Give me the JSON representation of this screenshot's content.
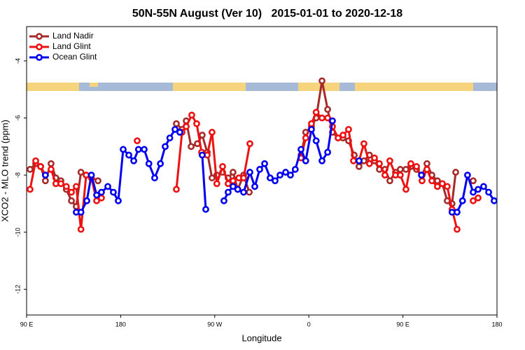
{
  "chart_data": {
    "type": "line",
    "title": "50N-55N August (Ver 10)   2015-01-01 to 2020-12-18",
    "x_label": "Longitude",
    "y_label": "XCO2 - MLO trend (ppm)",
    "xlim": [
      90,
      540
    ],
    "ylim": [
      -12.9,
      -2.8
    ],
    "xticks": [
      {
        "value": 90,
        "label": "90 E"
      },
      180,
      {
        "value": 270,
        "label": "90 W"
      },
      {
        "value": 360,
        "label": "0"
      },
      {
        "value": 450,
        "label": "90 E"
      },
      {
        "value": 540,
        "label": "180"
      }
    ],
    "yticks": [
      -12,
      -10,
      -8,
      -6,
      -4
    ],
    "legend": "upper left",
    "series": [
      {
        "name": "Land Nadir",
        "color": "#a52a2a",
        "x": [
          93.3,
          98.7,
          103.4,
          108,
          113.4,
          118,
          122.8,
          128,
          132.9,
          137.5,
          142,
          147,
          158.3,
          200,
          233.3,
          238.7,
          242.7,
          247.4,
          253.4,
          258,
          262.8,
          267.4,
          272,
          277.5,
          282.8,
          287.5,
          292,
          297.6,
          303,
          330,
          352.5,
          357,
          362.5,
          367,
          372.6,
          378,
          382.6,
          388,
          392.7,
          398,
          403.4,
          408,
          412.7,
          418,
          422.8,
          427.5,
          432.8,
          437.5,
          442.9,
          447.5,
          452.9,
          457.6,
          463,
          468.3,
          473,
          477.7,
          483,
          487.7,
          492.4,
          497,
          500.5,
          510,
          517.2
        ],
        "values": [
          -7.8,
          -7.6,
          -7.7,
          -8.2,
          -7.6,
          -8.1,
          -8.2,
          -8.5,
          -8.9,
          -9.1,
          -7.9,
          -8.0,
          -8.2,
          null,
          -6.2,
          -6.4,
          -6.1,
          -7.0,
          -6.9,
          -6.6,
          -7.2,
          -8.1,
          -8.0,
          -7.9,
          -8.1,
          -7.9,
          -8.5,
          -8.0,
          -8.6,
          null,
          -7.3,
          -6.5,
          -6.3,
          -6.0,
          -4.7,
          -5.7,
          -6.5,
          -6.7,
          -6.7,
          -6.8,
          -7.3,
          -7.7,
          -7.5,
          -7.3,
          -7.5,
          -7.8,
          -7.8,
          -8.2,
          -7.9,
          -7.8,
          -7.8,
          -7.7,
          -7.8,
          -8.0,
          -7.6,
          -8.0,
          -8.2,
          -8.3,
          -8.9,
          -9.0,
          -7.9,
          null,
          -8.2
        ]
      },
      {
        "name": "Land Glint",
        "color": "#ee1111",
        "x": [
          93.3,
          98.7,
          103.4,
          108,
          113.4,
          118,
          122.8,
          128,
          132.9,
          137.5,
          142,
          147,
          152,
          157,
          161.6,
          180,
          195.8,
          215,
          233.3,
          238.7,
          242.7,
          248,
          252.7,
          257.4,
          262.8,
          267.4,
          272,
          277.5,
          282.8,
          287.5,
          293,
          297.6,
          303.6,
          330,
          352.5,
          357,
          362.5,
          367,
          372.6,
          378,
          382.6,
          388,
          392.7,
          398,
          402.7,
          408,
          412.7,
          418,
          422.8,
          427.5,
          432.8,
          437.5,
          442.9,
          447.5,
          452.9,
          457.6,
          463,
          468.3,
          473,
          477.7,
          483,
          487.7,
          492.4,
          497,
          501.8,
          510,
          517.2,
          521.9
        ],
        "values": [
          -8.5,
          -7.5,
          -7.7,
          -8.0,
          -7.8,
          -8.3,
          -8.3,
          -8.4,
          -8.6,
          -8.4,
          -9.9,
          -8.0,
          -8.1,
          -8.9,
          -8.8,
          null,
          -6.8,
          null,
          -8.5,
          -6.5,
          -6.3,
          -5.9,
          -6.2,
          -7.2,
          -7.3,
          -6.5,
          -8.3,
          -7.7,
          -8.3,
          -8.2,
          -8.1,
          -8.1,
          -6.9,
          null,
          -7.4,
          -6.7,
          -6.2,
          -5.8,
          -6.0,
          -6.0,
          -6.3,
          -6.7,
          -6.6,
          -6.4,
          -7.5,
          -7.5,
          -6.9,
          -7.6,
          -7.4,
          -7.6,
          -8.0,
          -7.5,
          -8.0,
          -8.0,
          -8.5,
          -7.6,
          -7.7,
          -8.2,
          -7.8,
          -8.2,
          -8.4,
          -8.3,
          -8.4,
          -9.2,
          -9.9,
          null,
          -8.9,
          -8.8
        ]
      },
      {
        "name": "Ocean Glint",
        "color": "#0000ee",
        "x": [
          108,
          120,
          137.5,
          142,
          147.6,
          152,
          157,
          161.6,
          167.7,
          173,
          177.7,
          182.4,
          187.8,
          192.5,
          197,
          202.5,
          207,
          212.5,
          218,
          222.6,
          227,
          232,
          236.6,
          245,
          258,
          261.4,
          270,
          278.8,
          282.8,
          287.5,
          292,
          297.6,
          303.6,
          308.3,
          313,
          317.7,
          323,
          327.7,
          332.4,
          337.8,
          342.4,
          347,
          352.5,
          357,
          362.5,
          367,
          372.6,
          378,
          382.6,
          395,
          408,
          440,
          467.7,
          480,
          497,
          501.8,
          507,
          511.8,
          517.2,
          521.9,
          527.2,
          532,
          537.3
        ],
        "values": [
          -8.0,
          null,
          -9.3,
          -9.3,
          -8.9,
          -8.0,
          -8.7,
          -8.6,
          -8.4,
          -8.6,
          -8.9,
          -7.1,
          -7.3,
          -7.5,
          -7.1,
          -7.1,
          -7.6,
          -8.1,
          -7.6,
          -7.0,
          -6.7,
          -6.4,
          -6.5,
          null,
          -7.3,
          -9.2,
          null,
          -8.9,
          -8.6,
          -8.4,
          -8.5,
          -8.6,
          -7.9,
          -8.4,
          -7.8,
          -7.6,
          -8.1,
          -8.2,
          -8.0,
          -7.9,
          -8.0,
          -7.8,
          -7.1,
          -7.5,
          -6.4,
          -6.8,
          -7.5,
          -7.2,
          -6.1,
          null,
          -7.5,
          null,
          -8.0,
          null,
          -9.3,
          -9.3,
          -8.9,
          -8.0,
          -8.6,
          -8.5,
          -8.4,
          -8.6,
          -8.9
        ]
      }
    ]
  }
}
